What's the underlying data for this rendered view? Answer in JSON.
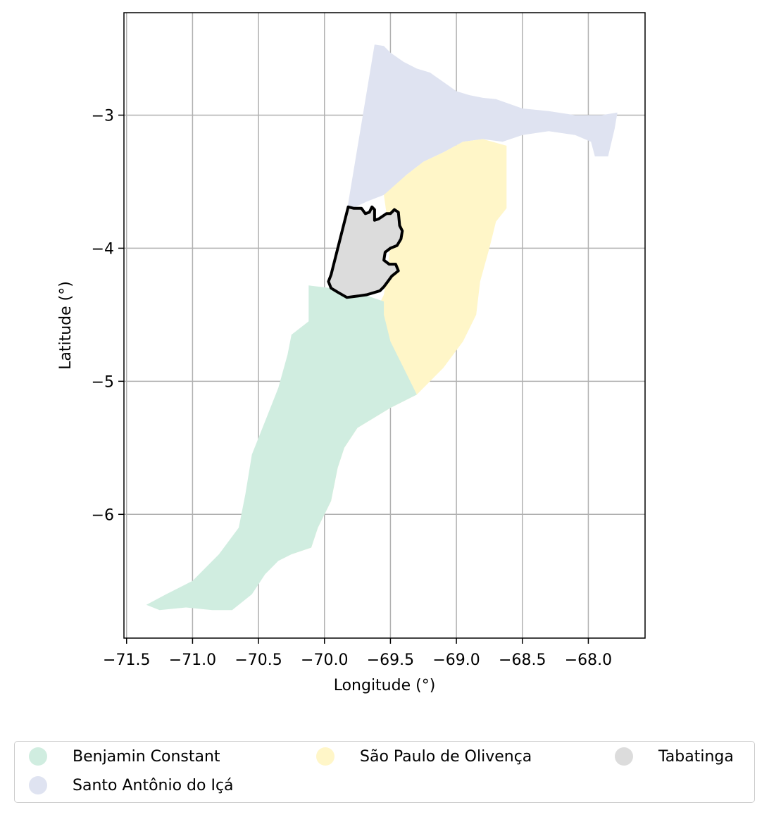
{
  "chart_data": {
    "type": "choropleth-map",
    "xlabel": "Longitude (°)",
    "ylabel": "Latitude (°)",
    "xlim": [
      -71.52,
      -67.57
    ],
    "ylim": [
      -6.93,
      -2.23
    ],
    "xticks": [
      -71.5,
      -71.0,
      -70.5,
      -70.0,
      -69.5,
      -69.0,
      -68.5,
      -68.0
    ],
    "xtick_labels": [
      "−71.5",
      "−71.0",
      "−70.5",
      "−70.0",
      "−69.5",
      "−69.0",
      "−68.5",
      "−68.0"
    ],
    "yticks": [
      -3,
      -4,
      -5,
      -6
    ],
    "ytick_labels": [
      "−3",
      "−4",
      "−5",
      "−6"
    ],
    "grid": true,
    "legend_position": "bottom",
    "highlighted_region": "Tabatinga",
    "regions": [
      {
        "name": "Santo Antônio do Içá",
        "color": "#dfe3f1",
        "polygon": [
          [
            -69.83,
            -3.72
          ],
          [
            -69.62,
            -2.47
          ],
          [
            -69.55,
            -2.48
          ],
          [
            -69.5,
            -2.53
          ],
          [
            -69.4,
            -2.6
          ],
          [
            -69.3,
            -2.65
          ],
          [
            -69.2,
            -2.68
          ],
          [
            -69.1,
            -2.75
          ],
          [
            -69.0,
            -2.82
          ],
          [
            -68.9,
            -2.85
          ],
          [
            -68.8,
            -2.87
          ],
          [
            -68.7,
            -2.88
          ],
          [
            -68.5,
            -2.95
          ],
          [
            -68.3,
            -2.97
          ],
          [
            -68.1,
            -3.0
          ],
          [
            -67.9,
            -3.0
          ],
          [
            -67.78,
            -2.98
          ],
          [
            -67.8,
            -3.1
          ],
          [
            -67.85,
            -3.31
          ],
          [
            -67.95,
            -3.31
          ],
          [
            -67.98,
            -3.2
          ],
          [
            -68.1,
            -3.15
          ],
          [
            -68.3,
            -3.12
          ],
          [
            -68.5,
            -3.15
          ],
          [
            -68.65,
            -3.2
          ],
          [
            -68.8,
            -3.18
          ],
          [
            -68.95,
            -3.2
          ],
          [
            -69.1,
            -3.28
          ],
          [
            -69.25,
            -3.35
          ],
          [
            -69.38,
            -3.45
          ],
          [
            -69.48,
            -3.55
          ],
          [
            -69.55,
            -3.6
          ],
          [
            -69.68,
            -3.65
          ],
          [
            -69.83,
            -3.72
          ]
        ]
      },
      {
        "name": "São Paulo de Olivença",
        "color": "#fff6c8",
        "polygon": [
          [
            -69.55,
            -3.6
          ],
          [
            -69.38,
            -3.45
          ],
          [
            -69.25,
            -3.35
          ],
          [
            -69.1,
            -3.28
          ],
          [
            -68.95,
            -3.2
          ],
          [
            -68.8,
            -3.18
          ],
          [
            -68.62,
            -3.23
          ],
          [
            -68.62,
            -3.7
          ],
          [
            -68.7,
            -3.8
          ],
          [
            -68.75,
            -4.0
          ],
          [
            -68.82,
            -4.25
          ],
          [
            -68.85,
            -4.5
          ],
          [
            -68.95,
            -4.7
          ],
          [
            -69.1,
            -4.9
          ],
          [
            -69.3,
            -5.1
          ],
          [
            -69.5,
            -5.2
          ],
          [
            -69.75,
            -5.35
          ],
          [
            -69.85,
            -5.5
          ],
          [
            -69.9,
            -5.65
          ],
          [
            -69.95,
            -5.9
          ],
          [
            -70.05,
            -6.1
          ],
          [
            -70.1,
            -6.25
          ],
          [
            -70.25,
            -6.3
          ],
          [
            -70.35,
            -6.15
          ],
          [
            -70.3,
            -5.95
          ],
          [
            -70.25,
            -5.7
          ],
          [
            -70.2,
            -5.45
          ],
          [
            -70.15,
            -5.2
          ],
          [
            -70.05,
            -5.0
          ],
          [
            -69.9,
            -4.8
          ],
          [
            -69.75,
            -4.6
          ],
          [
            -69.6,
            -4.45
          ],
          [
            -69.55,
            -4.35
          ],
          [
            -69.52,
            -4.15
          ],
          [
            -69.5,
            -3.95
          ],
          [
            -69.55,
            -3.6
          ]
        ]
      },
      {
        "name": "Benjamin Constant",
        "color": "#d0ede0",
        "polygon": [
          [
            -69.95,
            -4.3
          ],
          [
            -70.12,
            -4.28
          ],
          [
            -70.12,
            -4.55
          ],
          [
            -70.25,
            -4.65
          ],
          [
            -70.28,
            -4.8
          ],
          [
            -70.35,
            -5.05
          ],
          [
            -70.45,
            -5.3
          ],
          [
            -70.55,
            -5.55
          ],
          [
            -70.6,
            -5.85
          ],
          [
            -70.65,
            -6.1
          ],
          [
            -70.8,
            -6.3
          ],
          [
            -71.0,
            -6.5
          ],
          [
            -71.2,
            -6.6
          ],
          [
            -71.35,
            -6.68
          ],
          [
            -71.25,
            -6.72
          ],
          [
            -71.05,
            -6.7
          ],
          [
            -70.85,
            -6.72
          ],
          [
            -70.7,
            -6.72
          ],
          [
            -70.55,
            -6.6
          ],
          [
            -70.45,
            -6.45
          ],
          [
            -70.35,
            -6.35
          ],
          [
            -70.25,
            -6.3
          ],
          [
            -70.1,
            -6.25
          ],
          [
            -70.05,
            -6.1
          ],
          [
            -69.95,
            -5.9
          ],
          [
            -69.9,
            -5.65
          ],
          [
            -69.85,
            -5.5
          ],
          [
            -69.75,
            -5.35
          ],
          [
            -69.5,
            -5.2
          ],
          [
            -69.3,
            -5.1
          ],
          [
            -69.4,
            -4.9
          ],
          [
            -69.5,
            -4.7
          ],
          [
            -69.55,
            -4.5
          ],
          [
            -69.55,
            -4.4
          ],
          [
            -69.7,
            -4.35
          ],
          [
            -69.95,
            -4.3
          ]
        ]
      },
      {
        "name": "Tabatinga",
        "color": "#dcdcdc",
        "polygon": [
          [
            -69.82,
            -3.69
          ],
          [
            -69.78,
            -3.7
          ],
          [
            -69.72,
            -3.7
          ],
          [
            -69.69,
            -3.74
          ],
          [
            -69.66,
            -3.73
          ],
          [
            -69.64,
            -3.69
          ],
          [
            -69.62,
            -3.71
          ],
          [
            -69.62,
            -3.79
          ],
          [
            -69.59,
            -3.78
          ],
          [
            -69.53,
            -3.74
          ],
          [
            -69.5,
            -3.74
          ],
          [
            -69.47,
            -3.71
          ],
          [
            -69.44,
            -3.73
          ],
          [
            -69.43,
            -3.83
          ],
          [
            -69.41,
            -3.87
          ],
          [
            -69.42,
            -3.93
          ],
          [
            -69.45,
            -3.98
          ],
          [
            -69.5,
            -4.0
          ],
          [
            -69.54,
            -4.03
          ],
          [
            -69.55,
            -4.09
          ],
          [
            -69.51,
            -4.12
          ],
          [
            -69.46,
            -4.12
          ],
          [
            -69.44,
            -4.17
          ],
          [
            -69.49,
            -4.21
          ],
          [
            -69.52,
            -4.25
          ],
          [
            -69.55,
            -4.29
          ],
          [
            -69.58,
            -4.32
          ],
          [
            -69.68,
            -4.35
          ],
          [
            -69.75,
            -4.36
          ],
          [
            -69.83,
            -4.37
          ],
          [
            -69.9,
            -4.33
          ],
          [
            -69.95,
            -4.3
          ],
          [
            -69.97,
            -4.25
          ],
          [
            -69.95,
            -4.2
          ],
          [
            -69.82,
            -3.69
          ]
        ]
      }
    ]
  },
  "legend": {
    "items": [
      {
        "label": "Benjamin Constant",
        "color": "#d0ede0"
      },
      {
        "label": "São Paulo de Olivença",
        "color": "#fff6c8"
      },
      {
        "label": "Tabatinga",
        "color": "#dcdcdc"
      },
      {
        "label": "Santo Antônio do Içá",
        "color": "#dfe3f1"
      }
    ]
  }
}
